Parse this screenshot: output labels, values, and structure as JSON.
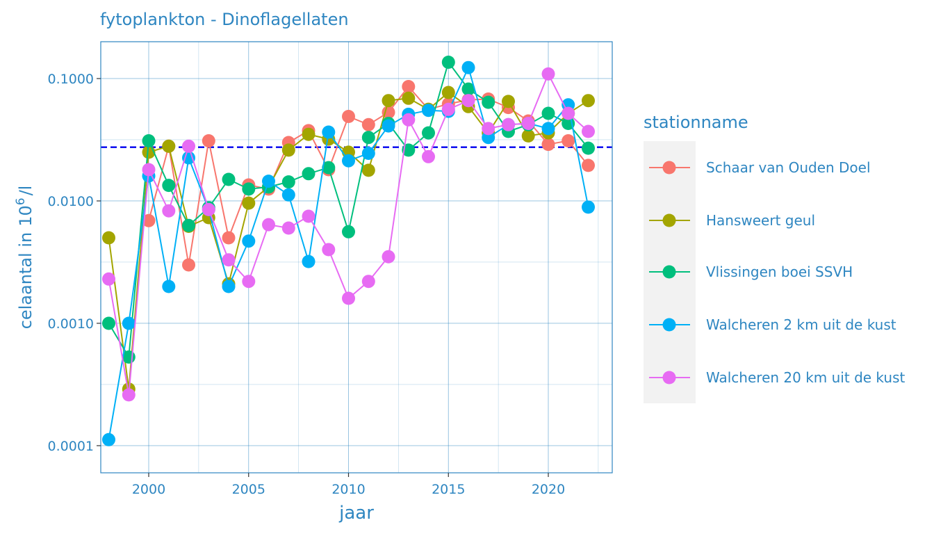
{
  "chart_data": {
    "type": "line",
    "title": "fytoplankton - Dinoflagellaten",
    "xlabel": "jaar",
    "ylabel_main": "celaantal in",
    "ylabel_base": "10",
    "ylabel_exp": "6",
    "ylabel_unit": "/l",
    "y_scale": "log10",
    "xlim": [
      1997.6,
      2023.2
    ],
    "ylim": [
      6e-05,
      0.2
    ],
    "x_ticks": [
      {
        "value": 2000,
        "label": "2000"
      },
      {
        "value": 2005,
        "label": "2005"
      },
      {
        "value": 2010,
        "label": "2010"
      },
      {
        "value": 2015,
        "label": "2015"
      },
      {
        "value": 2020,
        "label": "2020"
      }
    ],
    "y_ticks": [
      {
        "value": 0.0001,
        "label": "0.0001"
      },
      {
        "value": 0.001,
        "label": "0.0010"
      },
      {
        "value": 0.01,
        "label": "0.0100"
      },
      {
        "value": 0.1,
        "label": "0.1000"
      }
    ],
    "reference_line": {
      "y": 0.0275,
      "color": "#0000ee",
      "style": "dashed"
    },
    "grid": true,
    "legend_title": "stationname",
    "legend_position": "right",
    "accent_color": "#2e86c1",
    "series": [
      {
        "name": "Schaar van Ouden Doel",
        "color": "#F8766D",
        "x": [
          2000,
          2001,
          2002,
          2003,
          2004,
          2005,
          2006,
          2007,
          2008,
          2009,
          2010,
          2011,
          2012,
          2013,
          2014,
          2015,
          2016,
          2017,
          2018,
          2019,
          2020,
          2021,
          2022
        ],
        "y": [
          0.0069,
          0.028,
          0.003,
          0.031,
          0.005,
          0.0135,
          0.0125,
          0.03,
          0.0375,
          0.018,
          0.049,
          0.042,
          0.053,
          0.086,
          0.056,
          0.062,
          0.067,
          0.068,
          0.058,
          0.045,
          0.029,
          0.031,
          0.0195
        ]
      },
      {
        "name": "Hansweert geul",
        "color": "#A3A500",
        "x": [
          1998,
          1999,
          2000,
          2001,
          2002,
          2003,
          2004,
          2005,
          2006,
          2007,
          2008,
          2009,
          2010,
          2011,
          2012,
          2013,
          2014,
          2015,
          2016,
          2017,
          2018,
          2019,
          2020,
          2021,
          2022
        ],
        "y": [
          0.005,
          0.00029,
          0.025,
          0.028,
          0.0062,
          0.0073,
          0.0021,
          0.0096,
          0.013,
          0.026,
          0.035,
          0.032,
          0.025,
          0.0178,
          0.066,
          0.069,
          0.056,
          0.077,
          0.059,
          0.036,
          0.065,
          0.034,
          0.036,
          0.052,
          0.066
        ]
      },
      {
        "name": "Vlissingen boei SSVH",
        "color": "#00BF7D",
        "x": [
          1998,
          1999,
          2000,
          2001,
          2002,
          2003,
          2004,
          2005,
          2006,
          2007,
          2008,
          2009,
          2010,
          2011,
          2012,
          2013,
          2014,
          2015,
          2016,
          2017,
          2018,
          2019,
          2020,
          2021,
          2022
        ],
        "y": [
          0.001,
          0.00053,
          0.031,
          0.0134,
          0.0063,
          0.0088,
          0.015,
          0.0125,
          0.013,
          0.0143,
          0.0167,
          0.0187,
          0.0056,
          0.033,
          0.043,
          0.026,
          0.036,
          0.136,
          0.082,
          0.064,
          0.037,
          0.042,
          0.052,
          0.043,
          0.027
        ]
      },
      {
        "name": "Walcheren 2 km uit de kust",
        "color": "#00B0F6",
        "x": [
          1998,
          1999,
          2000,
          2001,
          2002,
          2003,
          2004,
          2005,
          2006,
          2007,
          2008,
          2009,
          2010,
          2011,
          2012,
          2013,
          2014,
          2015,
          2016,
          2017,
          2018,
          2019,
          2020,
          2021,
          2022
        ],
        "y": [
          0.000112,
          0.001,
          0.016,
          0.002,
          0.0225,
          0.0085,
          0.002,
          0.0047,
          0.0145,
          0.0112,
          0.0032,
          0.0365,
          0.0213,
          0.0245,
          0.041,
          0.051,
          0.055,
          0.054,
          0.123,
          0.033,
          0.042,
          0.043,
          0.039,
          0.061,
          0.0089
        ]
      },
      {
        "name": "Walcheren 20 km uit de kust",
        "color": "#E76BF3",
        "x": [
          1998,
          1999,
          2000,
          2001,
          2002,
          2003,
          2004,
          2005,
          2006,
          2007,
          2008,
          2009,
          2010,
          2011,
          2012,
          2013,
          2014,
          2015,
          2016,
          2017,
          2018,
          2019,
          2020,
          2021,
          2022
        ],
        "y": [
          0.0023,
          0.00026,
          0.018,
          0.0083,
          0.028,
          0.0085,
          0.0033,
          0.0022,
          0.0064,
          0.006,
          0.0075,
          0.004,
          0.0016,
          0.0022,
          0.0035,
          0.046,
          0.023,
          0.056,
          0.066,
          0.039,
          0.042,
          0.043,
          0.109,
          0.052,
          0.037
        ]
      }
    ]
  }
}
